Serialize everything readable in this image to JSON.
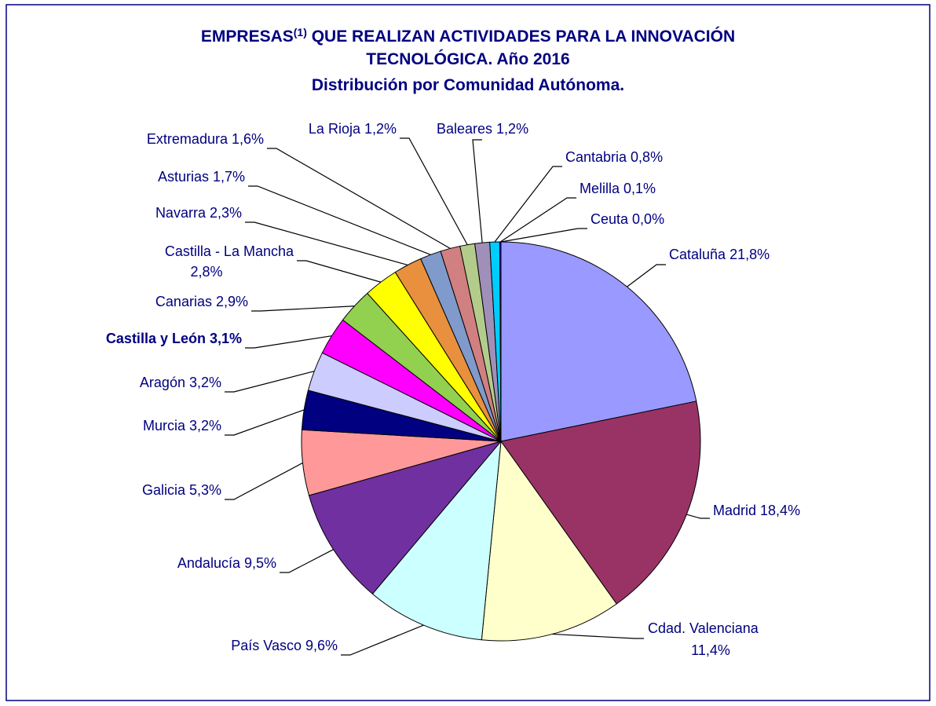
{
  "chart_data": {
    "type": "pie",
    "title": [
      "EMPRESAS",
      "(1)",
      " QUE REALIZAN ACTIVIDADES PARA LA INNOVACIÓN",
      "TECNOLÓGICA. Año 2016",
      "Distribución por Comunidad Autónoma."
    ],
    "categories": [
      "Cataluña",
      "Madrid",
      "Cdad. Valenciana",
      "País Vasco",
      "Andalucía",
      "Galicia",
      "Murcia",
      "Aragón",
      "Castilla y León",
      "Canarias",
      "Castilla - La Mancha",
      "Navarra",
      "Asturias",
      "Extremadura",
      "La Rioja",
      "Baleares",
      "Cantabria",
      "Melilla",
      "Ceuta"
    ],
    "values": [
      21.8,
      18.4,
      11.4,
      9.6,
      9.5,
      5.3,
      3.2,
      3.2,
      3.1,
      2.9,
      2.8,
      2.3,
      1.7,
      1.6,
      1.2,
      1.2,
      0.8,
      0.1,
      0.0
    ],
    "value_labels": [
      "21,8%",
      "18,4%",
      "11,4%",
      "9,6%",
      "9,5%",
      "5,3%",
      "3,2%",
      "3,2%",
      "3,1%",
      "2,9%",
      "2,8%",
      "2,3%",
      "1,7%",
      "1,6%",
      "1,2%",
      "1,2%",
      "0,8%",
      "0,1%",
      "0,0%"
    ],
    "colors": [
      "#9999ff",
      "#993366",
      "#ffffcc",
      "#ccffff",
      "#7030a0",
      "#ff9999",
      "#000080",
      "#ccccff",
      "#ff00ff",
      "#92d050",
      "#ffff00",
      "#e8903e",
      "#7f9acb",
      "#d08080",
      "#b3cc8c",
      "#a08fb8",
      "#00ccff",
      "#0000ff",
      "#3366ff"
    ]
  }
}
